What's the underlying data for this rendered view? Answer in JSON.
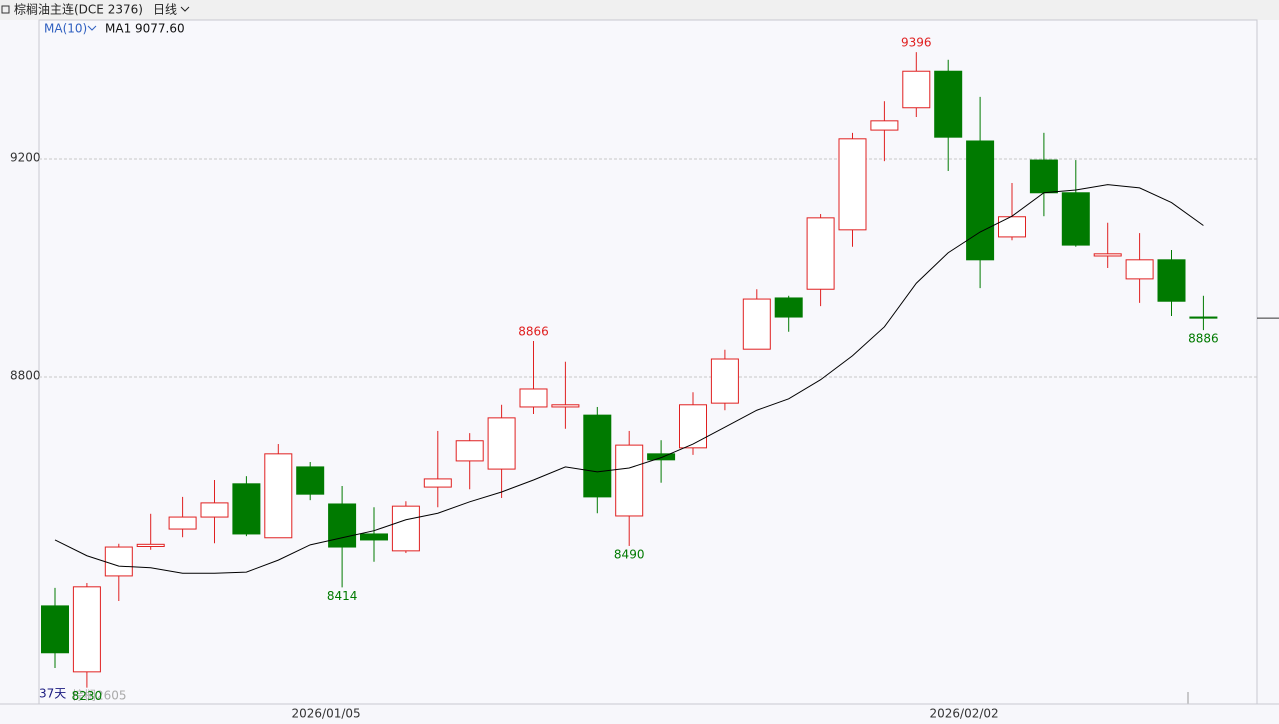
{
  "header": {
    "symbol": "棕榈油主连(DCE 2376)",
    "period": "日线",
    "indicator": "MA(10)",
    "ma_readout": "MA1 9077.60"
  },
  "footer": {
    "count": "37天",
    "contract": "棕榈2605"
  },
  "chart_data": {
    "type": "candlestick",
    "categories": [
      null,
      null,
      null,
      null,
      null,
      null,
      null,
      null,
      null,
      "2026/01/05",
      null,
      null,
      null,
      null,
      null,
      null,
      null,
      null,
      null,
      null,
      null,
      null,
      null,
      null,
      null,
      null,
      null,
      null,
      null,
      "2026/02/02",
      null,
      null,
      null,
      null,
      null,
      null,
      null
    ],
    "open": [
      8380,
      8259,
      8435,
      8489,
      8521,
      8543,
      8604,
      8505,
      8635,
      8567,
      8512,
      8481,
      8598,
      8646,
      8631,
      8745,
      8745,
      8730,
      8545,
      8659,
      8670,
      8752,
      8851,
      8945,
      8961,
      9070,
      9253,
      9294,
      9361,
      9233,
      9057,
      9198,
      9138,
      9022,
      8980,
      9015,
      8910
    ],
    "high": [
      8413,
      8422,
      8494,
      8549,
      8580,
      8611,
      8618,
      8677,
      8644,
      8600,
      8561,
      8572,
      8701,
      8697,
      8749,
      8866,
      8828,
      8745,
      8701,
      8684,
      8772,
      8850,
      8961,
      8949,
      9099,
      9248,
      9306,
      9396,
      9382,
      9314,
      9156,
      9248,
      9198,
      9083,
      9064,
      9033,
      8949
    ],
    "low": [
      8266,
      8230,
      8389,
      8483,
      8506,
      8495,
      8508,
      8505,
      8574,
      8414,
      8461,
      8477,
      8561,
      8594,
      8578,
      8732,
      8705,
      8550,
      8490,
      8606,
      8657,
      8739,
      8851,
      8883,
      8930,
      9039,
      9196,
      9277,
      9178,
      8963,
      9051,
      9095,
      9039,
      9000,
      8936,
      8912,
      8886
    ],
    "close": [
      8294,
      8415,
      8488,
      8493,
      8543,
      8569,
      8512,
      8659,
      8585,
      8488,
      8501,
      8563,
      8613,
      8683,
      8725,
      8778,
      8749,
      8580,
      8675,
      8648,
      8749,
      8833,
      8943,
      8910,
      9092,
      9237,
      9270,
      9361,
      9240,
      9015,
      9094,
      9138,
      9042,
      9026,
      9015,
      8939,
      8908
    ],
    "ma": {
      "name": "MA1",
      "color": "#000000",
      "values": [
        8501,
        8472,
        8453,
        8450,
        8440,
        8440,
        8442,
        8464,
        8492,
        8505,
        8518,
        8538,
        8550,
        8571,
        8589,
        8611,
        8635,
        8626,
        8633,
        8652,
        8677,
        8708,
        8739,
        8760,
        8795,
        8839,
        8892,
        8972,
        9028,
        9066,
        9095,
        9138,
        9143,
        9153,
        9147,
        9120,
        9078
      ]
    },
    "up_color": "#e02020",
    "down_color": "#007a00",
    "ylim": [
      8200,
      9455
    ],
    "yticks": [
      8800,
      9200
    ],
    "grid": true
  }
}
